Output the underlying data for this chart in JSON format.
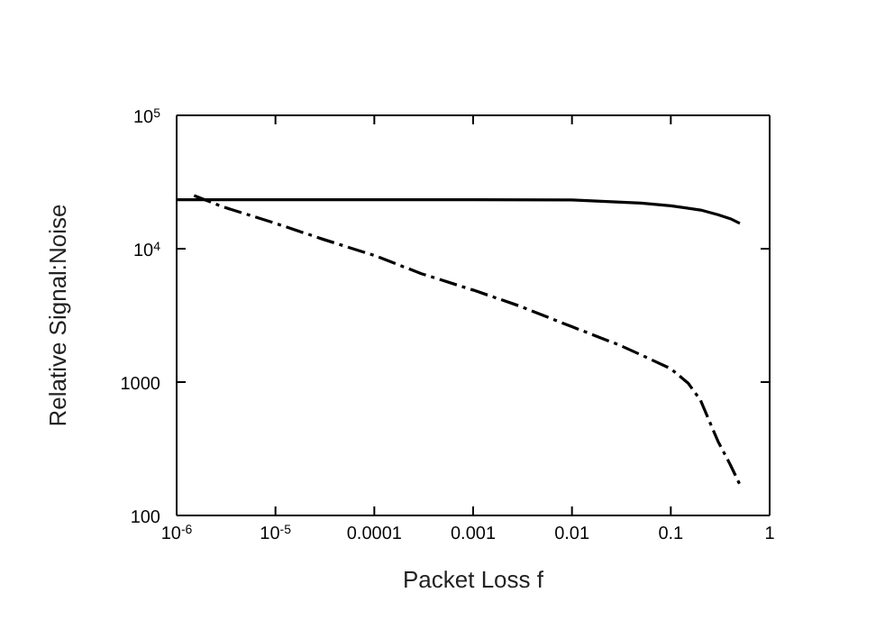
{
  "chart_data": {
    "type": "line",
    "xlabel": "Packet Loss f",
    "ylabel": "Relative Signal:Noise",
    "log": "xy",
    "marker": "none",
    "xlim": [
      1e-06,
      1
    ],
    "xticks": [
      {
        "value": 1e-06,
        "label": "10$^{-6}$"
      },
      {
        "value": 1e-05,
        "label": "10$^{-5}$"
      },
      0.0001,
      0.001,
      0.01,
      0.1,
      1
    ],
    "ylim": [
      100,
      100000
    ],
    "yticks": [
      100,
      1000,
      {
        "value": 10000,
        "label": "10$^{4}$"
      },
      {
        "value": 100000,
        "label": "10$^{5}$"
      }
    ],
    "series": [
      {
        "color": "#000000",
        "line_style": "solid",
        "x": [
          1e-06,
          1e-05,
          0.0001,
          0.001,
          0.01,
          0.05,
          0.1,
          0.2,
          0.3,
          0.4,
          0.5
        ],
        "values": [
          23300,
          23300,
          23300,
          23300,
          23200,
          22000,
          21000,
          19500,
          18000,
          16800,
          15500
        ]
      },
      {
        "color": "#000000",
        "line_style": "dashed",
        "x": [
          1.5e-06,
          3e-06,
          1e-05,
          3e-05,
          0.0001,
          0.0003,
          0.001,
          0.003,
          0.01,
          0.03,
          0.05,
          0.1,
          0.15,
          0.2,
          0.3,
          0.4,
          0.5
        ],
        "values": [
          25000,
          20500,
          15500,
          11800,
          8900,
          6500,
          4900,
          3700,
          2600,
          1900,
          1600,
          1260,
          980,
          730,
          360,
          240,
          170
        ]
      }
    ]
  }
}
